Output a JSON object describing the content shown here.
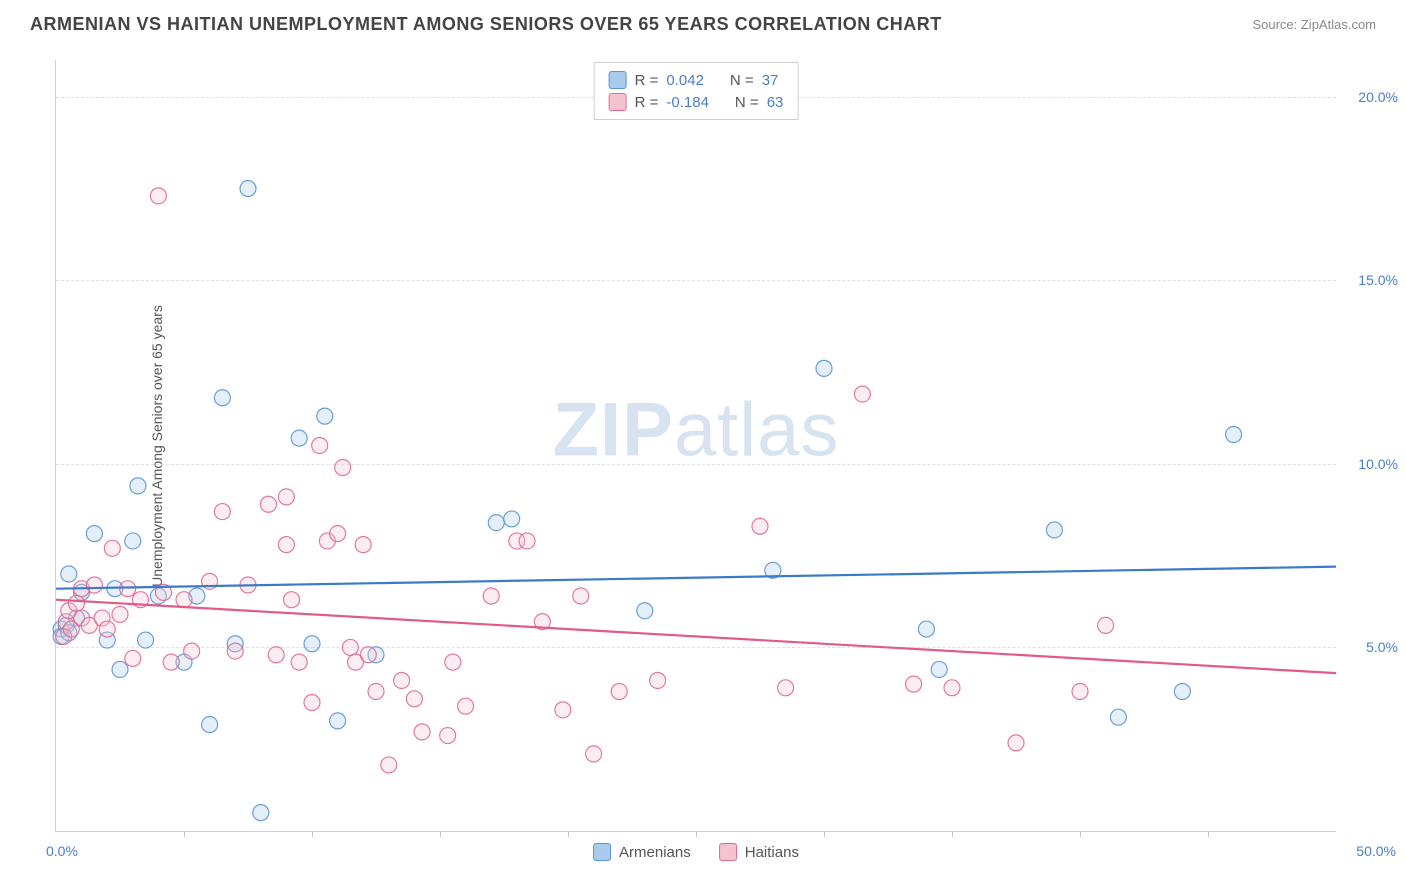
{
  "title": "ARMENIAN VS HAITIAN UNEMPLOYMENT AMONG SENIORS OVER 65 YEARS CORRELATION CHART",
  "source": "Source: ZipAtlas.com",
  "watermark_prefix": "ZIP",
  "watermark_suffix": "atlas",
  "y_axis_label": "Unemployment Among Seniors over 65 years",
  "x_origin": "0.0%",
  "x_max": "50.0%",
  "chart": {
    "type": "scatter",
    "xlim": [
      0,
      50
    ],
    "ylim": [
      0,
      21
    ],
    "x_ticks": [
      5,
      10,
      15,
      20,
      25,
      30,
      35,
      40,
      45
    ],
    "y_grid": [
      {
        "val": 5.0,
        "label": "5.0%"
      },
      {
        "val": 10.0,
        "label": "10.0%"
      },
      {
        "val": 15.0,
        "label": "15.0%"
      },
      {
        "val": 20.0,
        "label": "20.0%"
      }
    ],
    "marker_radius": 8,
    "marker_opacity_fill": 0.3,
    "marker_opacity_stroke": 0.9,
    "line_width": 2.2,
    "series": [
      {
        "name": "Armenians",
        "color_fill": "#a9cbec",
        "color_stroke": "#5b95d3",
        "line_color": "#3b7ac8",
        "r": "0.042",
        "n": "37",
        "trend": {
          "y_at_x0": 6.6,
          "y_at_xmax": 7.2
        },
        "points": [
          [
            0.2,
            5.5
          ],
          [
            0.2,
            5.3
          ],
          [
            0.4,
            5.6
          ],
          [
            0.5,
            5.4
          ],
          [
            0.5,
            7.0
          ],
          [
            0.8,
            5.8
          ],
          [
            1.0,
            6.5
          ],
          [
            1.5,
            8.1
          ],
          [
            2.0,
            5.2
          ],
          [
            2.3,
            6.6
          ],
          [
            2.5,
            4.4
          ],
          [
            3.0,
            7.9
          ],
          [
            3.2,
            9.4
          ],
          [
            3.5,
            5.2
          ],
          [
            4.0,
            6.4
          ],
          [
            5.0,
            4.6
          ],
          [
            5.5,
            6.4
          ],
          [
            6.0,
            2.9
          ],
          [
            6.5,
            11.8
          ],
          [
            7.0,
            5.1
          ],
          [
            7.5,
            17.5
          ],
          [
            8.0,
            0.5
          ],
          [
            9.5,
            10.7
          ],
          [
            10.0,
            5.1
          ],
          [
            10.5,
            11.3
          ],
          [
            11.0,
            3.0
          ],
          [
            12.5,
            4.8
          ],
          [
            17.2,
            8.4
          ],
          [
            17.8,
            8.5
          ],
          [
            23.0,
            6.0
          ],
          [
            28.0,
            7.1
          ],
          [
            30.0,
            12.6
          ],
          [
            34.0,
            5.5
          ],
          [
            34.5,
            4.4
          ],
          [
            39.0,
            8.2
          ],
          [
            41.5,
            3.1
          ],
          [
            44.0,
            3.8
          ],
          [
            46.0,
            10.8
          ]
        ]
      },
      {
        "name": "Haitians",
        "color_fill": "#f4c3d1",
        "color_stroke": "#e06a94",
        "line_color": "#e05a8a",
        "r": "-0.184",
        "n": "63",
        "trend": {
          "y_at_x0": 6.3,
          "y_at_xmax": 4.3
        },
        "points": [
          [
            0.3,
            5.3
          ],
          [
            0.4,
            5.7
          ],
          [
            0.5,
            6.0
          ],
          [
            0.6,
            5.5
          ],
          [
            0.8,
            6.2
          ],
          [
            1.0,
            5.8
          ],
          [
            1.0,
            6.6
          ],
          [
            1.3,
            5.6
          ],
          [
            1.5,
            6.7
          ],
          [
            1.8,
            5.8
          ],
          [
            2.0,
            5.5
          ],
          [
            2.2,
            7.7
          ],
          [
            2.5,
            5.9
          ],
          [
            2.8,
            6.6
          ],
          [
            3.0,
            4.7
          ],
          [
            3.3,
            6.3
          ],
          [
            4.0,
            17.3
          ],
          [
            4.2,
            6.5
          ],
          [
            4.5,
            4.6
          ],
          [
            5.0,
            6.3
          ],
          [
            5.3,
            4.9
          ],
          [
            6.0,
            6.8
          ],
          [
            6.5,
            8.7
          ],
          [
            7.0,
            4.9
          ],
          [
            7.5,
            6.7
          ],
          [
            8.3,
            8.9
          ],
          [
            8.6,
            4.8
          ],
          [
            9.0,
            7.8
          ],
          [
            9.0,
            9.1
          ],
          [
            9.2,
            6.3
          ],
          [
            9.5,
            4.6
          ],
          [
            10.0,
            3.5
          ],
          [
            10.3,
            10.5
          ],
          [
            10.6,
            7.9
          ],
          [
            11.0,
            8.1
          ],
          [
            11.2,
            9.9
          ],
          [
            11.5,
            5.0
          ],
          [
            11.7,
            4.6
          ],
          [
            12.0,
            7.8
          ],
          [
            12.2,
            4.8
          ],
          [
            12.5,
            3.8
          ],
          [
            13.0,
            1.8
          ],
          [
            13.5,
            4.1
          ],
          [
            14.0,
            3.6
          ],
          [
            14.3,
            2.7
          ],
          [
            15.3,
            2.6
          ],
          [
            15.5,
            4.6
          ],
          [
            16.0,
            3.4
          ],
          [
            17.0,
            6.4
          ],
          [
            18.0,
            7.9
          ],
          [
            18.4,
            7.9
          ],
          [
            19.0,
            5.7
          ],
          [
            19.8,
            3.3
          ],
          [
            20.5,
            6.4
          ],
          [
            21.0,
            2.1
          ],
          [
            22.0,
            3.8
          ],
          [
            23.5,
            4.1
          ],
          [
            27.5,
            8.3
          ],
          [
            28.5,
            3.9
          ],
          [
            31.5,
            11.9
          ],
          [
            33.5,
            4.0
          ],
          [
            35.0,
            3.9
          ],
          [
            37.5,
            2.4
          ],
          [
            40.0,
            3.8
          ],
          [
            41.0,
            5.6
          ]
        ]
      }
    ]
  },
  "legend": {
    "r_prefix": "R",
    "n_prefix": "N",
    "eq": " = "
  }
}
